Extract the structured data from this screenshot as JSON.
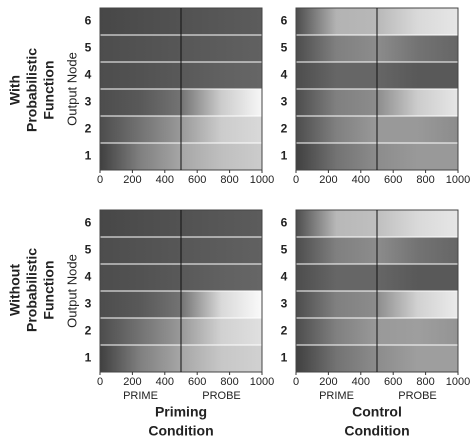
{
  "row_labels": [
    [
      "With",
      "Probabilistic",
      "Function"
    ],
    [
      "Without",
      "Probabilistic",
      "Function"
    ]
  ],
  "column_labels": [
    [
      "Priming",
      "Condition"
    ],
    [
      "Control",
      "Condition"
    ]
  ],
  "chart_data": [
    {
      "type": "heatmap",
      "ylabel": "Output Node",
      "categories": [
        1,
        2,
        3,
        4,
        5,
        6
      ],
      "x": [
        0,
        250,
        500,
        750,
        1000
      ],
      "xlim": [
        0,
        1000
      ],
      "xticks": [
        0,
        200,
        400,
        600,
        800,
        1000
      ],
      "divider": 500,
      "values": [
        [
          0.25,
          0.5,
          0.65,
          0.75,
          0.8
        ],
        [
          0.3,
          0.45,
          0.6,
          0.8,
          0.85
        ],
        [
          0.3,
          0.35,
          0.45,
          0.8,
          0.97
        ],
        [
          0.3,
          0.32,
          0.35,
          0.38,
          0.4
        ],
        [
          0.3,
          0.32,
          0.34,
          0.36,
          0.38
        ],
        [
          0.28,
          0.3,
          0.32,
          0.34,
          0.36
        ]
      ]
    },
    {
      "type": "heatmap",
      "categories": [
        1,
        2,
        3,
        4,
        5,
        6
      ],
      "x": [
        0,
        250,
        500,
        750,
        1000
      ],
      "xlim": [
        0,
        1000
      ],
      "xticks": [
        0,
        200,
        400,
        600,
        800,
        1000
      ],
      "divider": 500,
      "values": [
        [
          0.25,
          0.45,
          0.55,
          0.6,
          0.6
        ],
        [
          0.3,
          0.5,
          0.6,
          0.6,
          0.55
        ],
        [
          0.3,
          0.5,
          0.55,
          0.8,
          0.9
        ],
        [
          0.3,
          0.4,
          0.4,
          0.35,
          0.35
        ],
        [
          0.3,
          0.5,
          0.55,
          0.45,
          0.4
        ],
        [
          0.3,
          0.7,
          0.72,
          0.85,
          0.9
        ]
      ]
    },
    {
      "type": "heatmap",
      "ylabel": "Output Node",
      "categories": [
        1,
        2,
        3,
        4,
        5,
        6
      ],
      "x": [
        0,
        250,
        500,
        750,
        1000
      ],
      "xlim": [
        0,
        1000
      ],
      "xticks": [
        0,
        200,
        400,
        600,
        800,
        1000
      ],
      "divider": 500,
      "phases": [
        "PRIME",
        "PROBE"
      ],
      "values": [
        [
          0.25,
          0.5,
          0.65,
          0.78,
          0.82
        ],
        [
          0.3,
          0.45,
          0.6,
          0.82,
          0.88
        ],
        [
          0.3,
          0.35,
          0.45,
          0.85,
          0.98
        ],
        [
          0.3,
          0.32,
          0.35,
          0.38,
          0.4
        ],
        [
          0.3,
          0.32,
          0.34,
          0.36,
          0.38
        ],
        [
          0.28,
          0.3,
          0.32,
          0.34,
          0.36
        ]
      ]
    },
    {
      "type": "heatmap",
      "categories": [
        1,
        2,
        3,
        4,
        5,
        6
      ],
      "x": [
        0,
        250,
        500,
        750,
        1000
      ],
      "xlim": [
        0,
        1000
      ],
      "xticks": [
        0,
        200,
        400,
        600,
        800,
        1000
      ],
      "divider": 500,
      "phases": [
        "PRIME",
        "PROBE"
      ],
      "values": [
        [
          0.25,
          0.45,
          0.55,
          0.62,
          0.62
        ],
        [
          0.3,
          0.5,
          0.6,
          0.62,
          0.58
        ],
        [
          0.3,
          0.5,
          0.55,
          0.82,
          0.92
        ],
        [
          0.3,
          0.4,
          0.4,
          0.35,
          0.35
        ],
        [
          0.3,
          0.5,
          0.55,
          0.45,
          0.4
        ],
        [
          0.3,
          0.72,
          0.75,
          0.85,
          0.9
        ]
      ]
    }
  ]
}
